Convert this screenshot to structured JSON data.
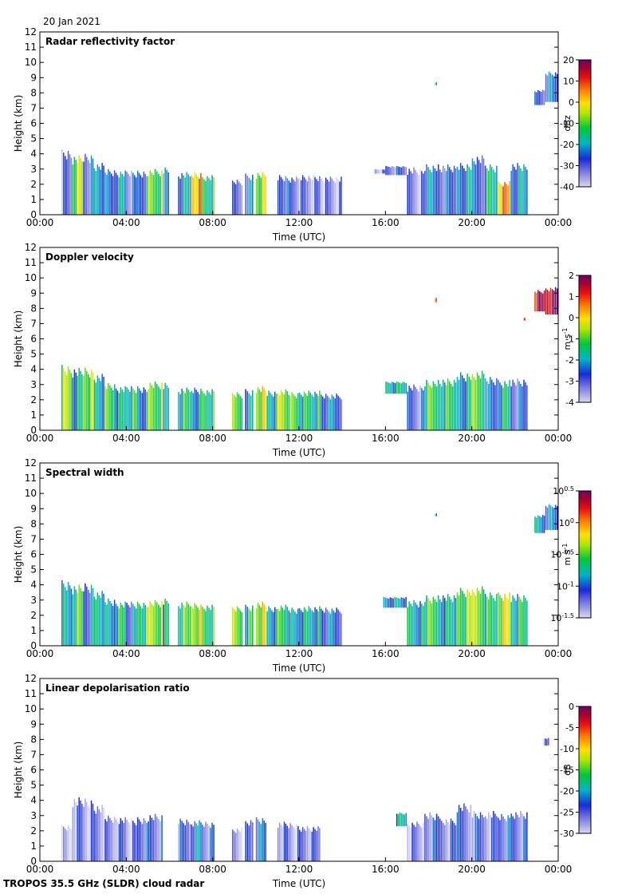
{
  "date": "20 Jan 2021",
  "footer": "TROPOS 35.5 GHz (SLDR) cloud radar",
  "chart_data": [
    {
      "type": "heatmap",
      "title": "Radar reflectivity factor",
      "xlabel": "Time (UTC)",
      "ylabel": "Height (km)",
      "xticks": [
        "00:00",
        "04:00",
        "08:00",
        "12:00",
        "16:00",
        "20:00",
        "00:00"
      ],
      "yticks": [
        "0",
        "1",
        "2",
        "3",
        "4",
        "5",
        "6",
        "7",
        "8",
        "9",
        "10",
        "11",
        "12"
      ],
      "ylim": [
        0,
        12
      ],
      "colorbar": {
        "label": "dBz",
        "range": [
          -40,
          20
        ],
        "ticks": [
          "20",
          "10",
          "0",
          "-10",
          "-20",
          "-30",
          "-40"
        ]
      },
      "cells": [
        [
          1.0,
          1.5,
          0.0,
          4.3,
          -32
        ],
        [
          1.5,
          2.0,
          0.0,
          3.9,
          -8
        ],
        [
          2.0,
          2.5,
          0.0,
          4.0,
          -28
        ],
        [
          2.5,
          3.0,
          0.0,
          3.4,
          -20
        ],
        [
          3.0,
          3.5,
          0.0,
          3.0,
          -26
        ],
        [
          3.5,
          4.0,
          0.0,
          2.9,
          -22
        ],
        [
          4.0,
          4.5,
          0.0,
          2.9,
          -30
        ],
        [
          4.5,
          5.0,
          0.0,
          2.9,
          -24
        ],
        [
          5.0,
          5.7,
          0.0,
          3.0,
          -10
        ],
        [
          5.7,
          6.0,
          0.0,
          3.1,
          -28
        ],
        [
          6.4,
          7.0,
          0.0,
          2.8,
          -22
        ],
        [
          7.0,
          7.5,
          0.0,
          2.8,
          3
        ],
        [
          7.5,
          8.1,
          0.0,
          2.6,
          -14
        ],
        [
          8.9,
          9.4,
          0.0,
          2.3,
          -32
        ],
        [
          9.5,
          9.9,
          0.0,
          2.7,
          -26
        ],
        [
          10.0,
          10.5,
          0.0,
          2.8,
          -6
        ],
        [
          11.0,
          11.5,
          0.0,
          2.6,
          -26
        ],
        [
          11.5,
          12.0,
          0.0,
          2.5,
          -30
        ],
        [
          12.0,
          13.0,
          0.0,
          2.6,
          -33
        ],
        [
          13.0,
          14.0,
          0.0,
          2.5,
          -34
        ],
        [
          15.5,
          16.0,
          2.7,
          3.0,
          -34
        ],
        [
          16.0,
          17.0,
          2.6,
          3.2,
          -30
        ],
        [
          17.0,
          17.8,
          0.0,
          3.1,
          -33
        ],
        [
          17.8,
          18.5,
          0.0,
          3.3,
          -24
        ],
        [
          18.5,
          19.3,
          0.0,
          3.3,
          -28
        ],
        [
          19.3,
          20.0,
          0.0,
          3.4,
          -22
        ],
        [
          20.0,
          20.6,
          0.0,
          3.9,
          -26
        ],
        [
          20.6,
          21.2,
          0.0,
          3.3,
          -18
        ],
        [
          21.2,
          21.8,
          0.0,
          2.2,
          3
        ],
        [
          21.8,
          22.6,
          0.0,
          3.4,
          -22
        ],
        [
          18.3,
          18.4,
          8.5,
          8.7,
          -24
        ],
        [
          22.9,
          23.4,
          7.2,
          8.2,
          -30
        ],
        [
          23.4,
          24.0,
          7.4,
          9.4,
          -26
        ]
      ]
    },
    {
      "type": "heatmap",
      "title": "Doppler velocity",
      "xlabel": "Time (UTC)",
      "ylabel": "Height (km)",
      "xticks": [
        "00:00",
        "04:00",
        "08:00",
        "12:00",
        "16:00",
        "20:00",
        "00:00"
      ],
      "yticks": [
        "0",
        "1",
        "2",
        "3",
        "4",
        "5",
        "6",
        "7",
        "8",
        "9",
        "10",
        "11",
        "12"
      ],
      "ylim": [
        0,
        12
      ],
      "colorbar": {
        "label": "m s-1",
        "range": [
          -4,
          2
        ],
        "ticks": [
          "2",
          "1",
          "0",
          "-1",
          "-2",
          "-3",
          "-4"
        ]
      },
      "cells": [
        [
          1.0,
          1.5,
          0.0,
          4.3,
          -0.8
        ],
        [
          1.5,
          2.0,
          0.0,
          4.1,
          -2.0
        ],
        [
          2.0,
          2.5,
          0.0,
          4.1,
          -0.7
        ],
        [
          2.5,
          3.0,
          0.0,
          3.7,
          -1.8
        ],
        [
          3.0,
          3.5,
          0.0,
          3.1,
          -1.3
        ],
        [
          3.5,
          4.0,
          0.0,
          2.9,
          -1.9
        ],
        [
          4.0,
          4.5,
          0.0,
          2.9,
          -1.5
        ],
        [
          4.5,
          5.0,
          0.0,
          2.9,
          -2.2
        ],
        [
          5.0,
          5.7,
          0.0,
          3.2,
          -1.0
        ],
        [
          5.7,
          6.0,
          0.0,
          3.1,
          -2.4
        ],
        [
          6.4,
          7.0,
          0.0,
          2.8,
          -1.6
        ],
        [
          7.0,
          7.5,
          0.0,
          2.8,
          -2.0
        ],
        [
          7.5,
          8.1,
          0.0,
          2.7,
          -1.4
        ],
        [
          8.9,
          9.4,
          0.0,
          2.5,
          -1.2
        ],
        [
          9.5,
          9.9,
          0.0,
          2.7,
          -2.2
        ],
        [
          10.0,
          10.5,
          0.0,
          2.9,
          -0.4
        ],
        [
          10.5,
          11.0,
          0.0,
          2.6,
          -1.7
        ],
        [
          11.0,
          11.5,
          0.0,
          2.7,
          -0.6
        ],
        [
          11.5,
          12.0,
          0.0,
          2.5,
          -1.2
        ],
        [
          12.0,
          13.0,
          0.0,
          2.6,
          -1.6
        ],
        [
          13.0,
          14.0,
          0.0,
          2.4,
          -2.4
        ],
        [
          16.0,
          17.0,
          2.4,
          3.2,
          -1.8
        ],
        [
          17.0,
          17.8,
          0.0,
          3.0,
          -3.0
        ],
        [
          17.8,
          18.5,
          0.0,
          3.3,
          -1.3
        ],
        [
          18.5,
          19.3,
          0.0,
          3.4,
          -1.5
        ],
        [
          19.3,
          20.0,
          0.0,
          3.8,
          -2.0
        ],
        [
          20.0,
          20.6,
          0.0,
          3.9,
          -1.0
        ],
        [
          20.6,
          21.2,
          0.0,
          3.5,
          -2.6
        ],
        [
          21.2,
          21.8,
          0.0,
          3.3,
          -1.8
        ],
        [
          21.8,
          22.6,
          0.0,
          3.4,
          -2.8
        ],
        [
          18.3,
          18.4,
          8.4,
          8.7,
          0.6
        ],
        [
          22.4,
          22.5,
          7.2,
          7.4,
          0.5
        ],
        [
          22.9,
          23.4,
          7.8,
          9.2,
          1.4
        ],
        [
          23.4,
          24.0,
          7.6,
          9.4,
          1.7
        ]
      ]
    },
    {
      "type": "heatmap",
      "title": "Spectral width",
      "xlabel": "Time (UTC)",
      "ylabel": "Height (km)",
      "xticks": [
        "00:00",
        "04:00",
        "08:00",
        "12:00",
        "16:00",
        "20:00",
        "00:00"
      ],
      "yticks": [
        "0",
        "1",
        "2",
        "3",
        "4",
        "5",
        "6",
        "7",
        "8",
        "9",
        "10",
        "11",
        "12"
      ],
      "ylim": [
        0,
        12
      ],
      "colorbar": {
        "label": "m s-1",
        "range": [
          -1.5,
          0.5
        ],
        "ticks": [
          "10^0.5",
          "10^0",
          "10^-0.5",
          "10^-1",
          "10^-1.5"
        ]
      },
      "cells": [
        [
          1.0,
          1.5,
          0.0,
          4.3,
          -0.9
        ],
        [
          1.5,
          2.0,
          0.0,
          4.0,
          -0.6
        ],
        [
          2.0,
          2.5,
          0.0,
          4.1,
          -1.0
        ],
        [
          2.5,
          3.0,
          0.0,
          3.6,
          -0.7
        ],
        [
          3.0,
          3.5,
          0.0,
          3.1,
          -0.9
        ],
        [
          3.5,
          4.0,
          0.0,
          2.9,
          -0.7
        ],
        [
          4.0,
          4.5,
          0.0,
          2.9,
          -1.0
        ],
        [
          4.5,
          5.0,
          0.0,
          2.9,
          -0.6
        ],
        [
          5.0,
          5.7,
          0.0,
          3.0,
          -0.4
        ],
        [
          5.7,
          6.0,
          0.0,
          3.1,
          -0.8
        ],
        [
          6.4,
          7.0,
          0.0,
          2.9,
          -0.6
        ],
        [
          7.0,
          7.5,
          0.0,
          2.8,
          -0.3
        ],
        [
          7.5,
          8.1,
          0.0,
          2.7,
          -0.6
        ],
        [
          8.9,
          9.4,
          0.0,
          2.6,
          -0.5
        ],
        [
          9.5,
          9.9,
          0.0,
          2.7,
          -0.7
        ],
        [
          10.0,
          10.5,
          0.0,
          2.9,
          -0.3
        ],
        [
          10.5,
          11.0,
          0.0,
          2.6,
          -0.8
        ],
        [
          11.0,
          11.5,
          0.0,
          2.7,
          -0.6
        ],
        [
          11.5,
          12.0,
          0.0,
          2.5,
          -0.9
        ],
        [
          12.0,
          13.0,
          0.0,
          2.6,
          -0.8
        ],
        [
          13.0,
          14.0,
          0.0,
          2.5,
          -1.0
        ],
        [
          15.9,
          17.0,
          2.5,
          3.2,
          -0.9
        ],
        [
          17.0,
          17.8,
          0.0,
          3.0,
          -0.8
        ],
        [
          17.8,
          18.5,
          0.0,
          3.3,
          -0.6
        ],
        [
          18.5,
          19.3,
          0.0,
          3.4,
          -0.8
        ],
        [
          19.3,
          20.0,
          0.0,
          3.8,
          -0.5
        ],
        [
          20.0,
          20.6,
          0.0,
          3.9,
          -0.4
        ],
        [
          20.6,
          21.2,
          0.0,
          3.5,
          -0.7
        ],
        [
          21.2,
          21.8,
          0.0,
          3.5,
          -0.3
        ],
        [
          21.8,
          22.6,
          0.0,
          3.4,
          -0.7
        ],
        [
          18.3,
          18.4,
          8.5,
          8.7,
          -1.0
        ],
        [
          22.9,
          23.4,
          7.4,
          8.6,
          -0.9
        ],
        [
          23.4,
          24.0,
          7.6,
          9.3,
          -1.0
        ]
      ]
    },
    {
      "type": "heatmap",
      "title": "Linear depolarisation ratio",
      "xlabel": "Time (UTC)",
      "ylabel": "Height (km)",
      "xticks": [
        "00:00",
        "04:00",
        "08:00",
        "12:00",
        "16:00",
        "20:00",
        "00:00"
      ],
      "yticks": [
        "0",
        "1",
        "2",
        "3",
        "4",
        "5",
        "6",
        "7",
        "8",
        "9",
        "10",
        "11",
        "12"
      ],
      "ylim": [
        0,
        12
      ],
      "colorbar": {
        "label": "dB",
        "range": [
          -30,
          0
        ],
        "ticks": [
          "0",
          "-5",
          "-10",
          "-15",
          "-20",
          "-25",
          "-30"
        ]
      },
      "cells": [
        [
          1.0,
          1.5,
          0.0,
          2.4,
          -30
        ],
        [
          1.5,
          2.0,
          0.0,
          4.2,
          -26
        ],
        [
          2.0,
          2.5,
          0.0,
          4.1,
          -27
        ],
        [
          2.5,
          3.0,
          0.0,
          3.7,
          -26
        ],
        [
          3.0,
          3.5,
          0.0,
          3.0,
          -27
        ],
        [
          3.5,
          4.0,
          0.0,
          2.9,
          -26
        ],
        [
          4.0,
          4.5,
          0.0,
          2.8,
          -27
        ],
        [
          4.5,
          5.0,
          0.0,
          2.9,
          -24
        ],
        [
          5.0,
          5.7,
          0.0,
          3.1,
          -25
        ],
        [
          6.4,
          7.0,
          0.0,
          2.8,
          -25
        ],
        [
          7.0,
          7.5,
          0.0,
          2.7,
          -22
        ],
        [
          7.5,
          8.1,
          0.0,
          2.6,
          -25
        ],
        [
          8.9,
          9.4,
          0.0,
          2.2,
          -27
        ],
        [
          9.5,
          9.9,
          0.0,
          2.7,
          -26
        ],
        [
          10.0,
          10.5,
          0.0,
          2.9,
          -23
        ],
        [
          11.0,
          11.5,
          0.0,
          2.6,
          -26
        ],
        [
          11.5,
          12.0,
          0.0,
          2.5,
          -27
        ],
        [
          12.0,
          13.0,
          0.0,
          2.3,
          -26
        ],
        [
          16.5,
          17.0,
          2.3,
          3.2,
          -20
        ],
        [
          17.0,
          17.8,
          0.0,
          2.6,
          -27
        ],
        [
          17.8,
          18.5,
          0.0,
          3.2,
          -25
        ],
        [
          18.5,
          19.3,
          0.0,
          2.8,
          -26
        ],
        [
          19.3,
          20.0,
          0.0,
          3.8,
          -25
        ],
        [
          20.0,
          20.6,
          0.0,
          3.3,
          -25
        ],
        [
          20.6,
          21.2,
          0.0,
          3.3,
          -26
        ],
        [
          21.2,
          21.8,
          0.0,
          3.1,
          -24
        ],
        [
          21.8,
          22.6,
          0.0,
          3.3,
          -25
        ],
        [
          23.3,
          23.6,
          7.6,
          8.1,
          -27
        ]
      ]
    }
  ]
}
